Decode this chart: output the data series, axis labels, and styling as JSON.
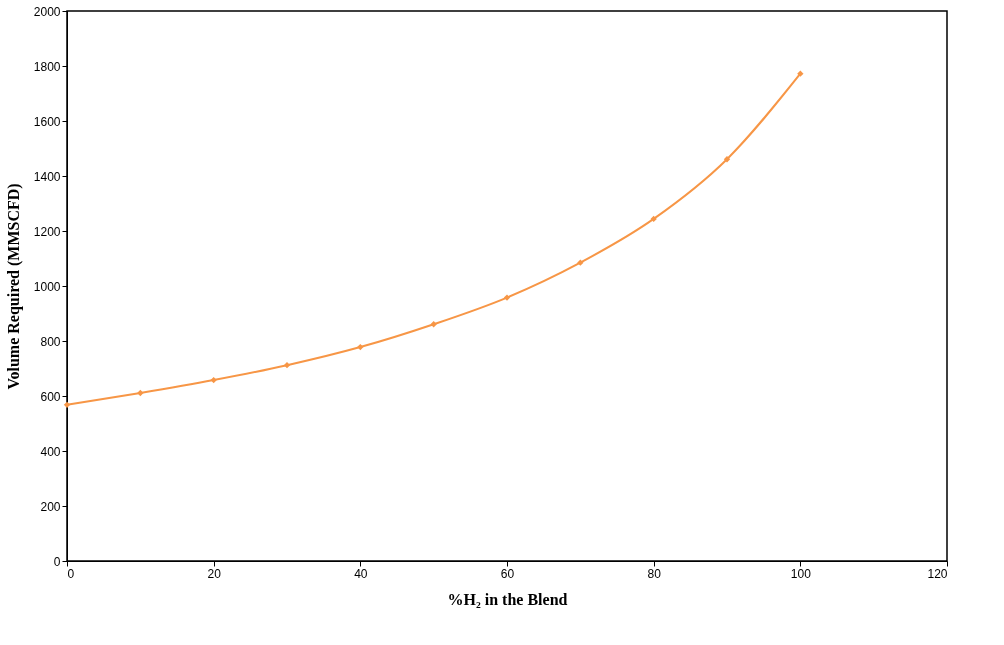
{
  "chart_data": {
    "type": "line",
    "xlabel": "%H₂ in the Blend",
    "ylabel": "Volume Required (MMSCFD)",
    "x": [
      0,
      10,
      20,
      30,
      40,
      50,
      60,
      70,
      80,
      90,
      100
    ],
    "series": [
      {
        "color": "#f79646",
        "values": [
          568,
          611,
          658,
          712,
          778,
          861,
          958,
          1085,
          1244,
          1461,
          1772
        ]
      }
    ],
    "xlim": [
      0,
      120
    ],
    "xticks": [
      0,
      20,
      40,
      60,
      80,
      100,
      120
    ],
    "ylim": [
      0,
      2000
    ],
    "yticks": [
      0,
      200,
      400,
      600,
      800,
      1000,
      1200,
      1400,
      1600,
      1800,
      2000
    ],
    "grid": false,
    "marker": "diamond",
    "line_style": "solid"
  }
}
